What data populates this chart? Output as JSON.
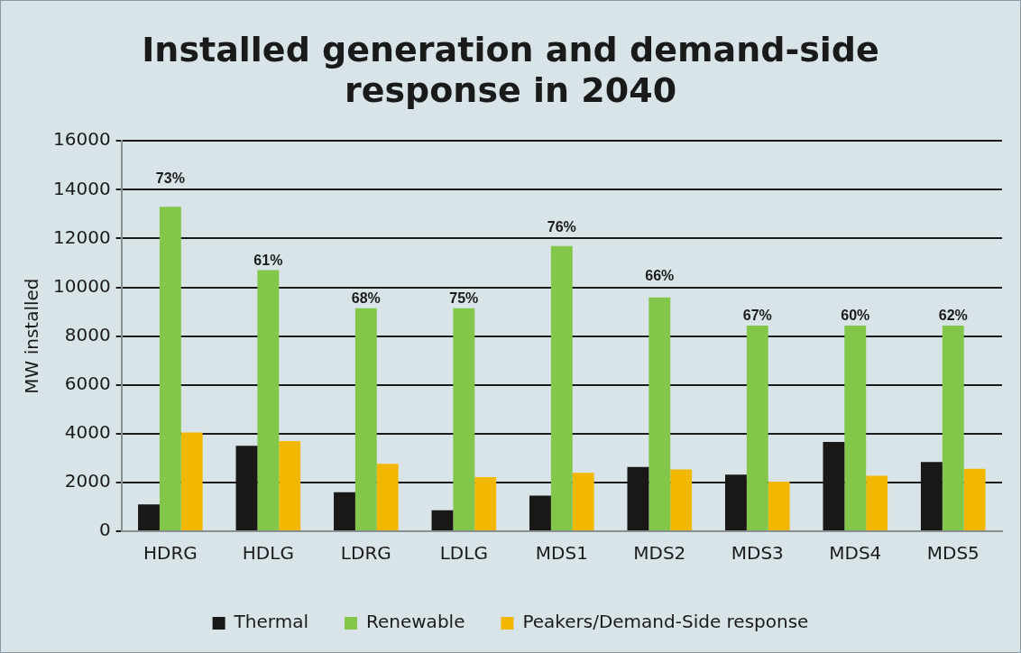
{
  "chart_data": {
    "type": "bar",
    "title": "Installed generation and demand-side response in 2040",
    "ylabel": "MW installed",
    "categories": [
      "HDRG",
      "HDLG",
      "LDRG",
      "LDLG",
      "MDS1",
      "MDS2",
      "MDS3",
      "MDS4",
      "MDS5"
    ],
    "series": [
      {
        "name": "Thermal",
        "color": "#1a1817",
        "values": [
          1100,
          3500,
          1600,
          860,
          1460,
          2630,
          2320,
          3660,
          2840
        ]
      },
      {
        "name": "Renewable",
        "color": "#82c64a",
        "values": [
          13300,
          10700,
          9140,
          9140,
          11690,
          9580,
          8430,
          8430,
          8430
        ]
      },
      {
        "name": "Peakers/Demand-Side response",
        "color": "#f2b700",
        "values": [
          4050,
          3700,
          2760,
          2220,
          2390,
          2530,
          2030,
          2270,
          2560
        ]
      }
    ],
    "ylim": [
      0,
      16000
    ],
    "yticks": [
      0,
      2000,
      4000,
      6000,
      8000,
      10000,
      12000,
      14000,
      16000
    ],
    "grid": "y",
    "legend": "bottom",
    "annotations": [
      {
        "text": "73%",
        "x": "HDRG",
        "y": 13300
      },
      {
        "text": "61%",
        "x": "HDLG",
        "y": 10700
      },
      {
        "text": "68%",
        "x": "LDRG",
        "y": 9140
      },
      {
        "text": "75%",
        "x": "LDLG",
        "y": 9140
      },
      {
        "text": "76%",
        "x": "MDS1",
        "y": 11690
      },
      {
        "text": "66%",
        "x": "MDS2",
        "y": 9580
      },
      {
        "text": "67%",
        "x": "MDS3",
        "y": 8430
      },
      {
        "text": "60%",
        "x": "MDS4",
        "y": 8430
      },
      {
        "text": "62%",
        "x": "MDS5",
        "y": 8430
      }
    ]
  }
}
